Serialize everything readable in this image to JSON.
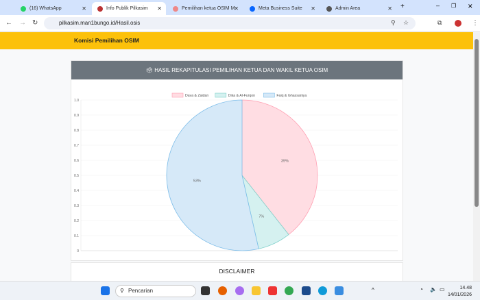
{
  "browser": {
    "tabs": [
      {
        "label": "(16) WhatsApp",
        "color": "#25d366"
      },
      {
        "label": "Info Publik Pilkasim",
        "color": "#b33",
        "active": true
      },
      {
        "label": "Pemilihan ketua OSIM M",
        "color": "#e88"
      },
      {
        "label": "Meta Business Suite",
        "color": "#0866ff"
      },
      {
        "label": "Admin Area",
        "color": "#555"
      }
    ],
    "url": "pilkasim.man1bungo.id/Hasil.osis"
  },
  "header": {
    "title": "Komisi Pemilihan OSIM"
  },
  "card": {
    "title": "HASIL REKAPITULASI PEMILIHAN KETUA DAN WAKIL KETUA OSIM"
  },
  "disclaimer": {
    "title": "DISCLAIMER"
  },
  "chart_data": {
    "type": "pie",
    "categories": [
      "Dava & Zaidan",
      "Dika & Al-Furqon",
      "Faiq & Ghassaniya"
    ],
    "values": [
      39,
      7,
      53
    ],
    "labels": [
      "39%",
      "7%",
      "53%"
    ],
    "colors": [
      "#ffdde3",
      "#d5f1f0",
      "#d6e9f8"
    ],
    "borders": [
      "#ff9fb2",
      "#7fd0ca",
      "#7dbde9"
    ],
    "legend": "top",
    "yticks": [
      "0",
      "0.1",
      "0.2",
      "0.3",
      "0.4",
      "0.5",
      "0.6",
      "0.7",
      "0.8",
      "0.9",
      "1.0"
    ],
    "ylim": [
      0,
      1
    ],
    "grid": true
  },
  "taskbar": {
    "search_placeholder": "Pencarian",
    "time": "14.48",
    "date": "14/01/2026"
  }
}
